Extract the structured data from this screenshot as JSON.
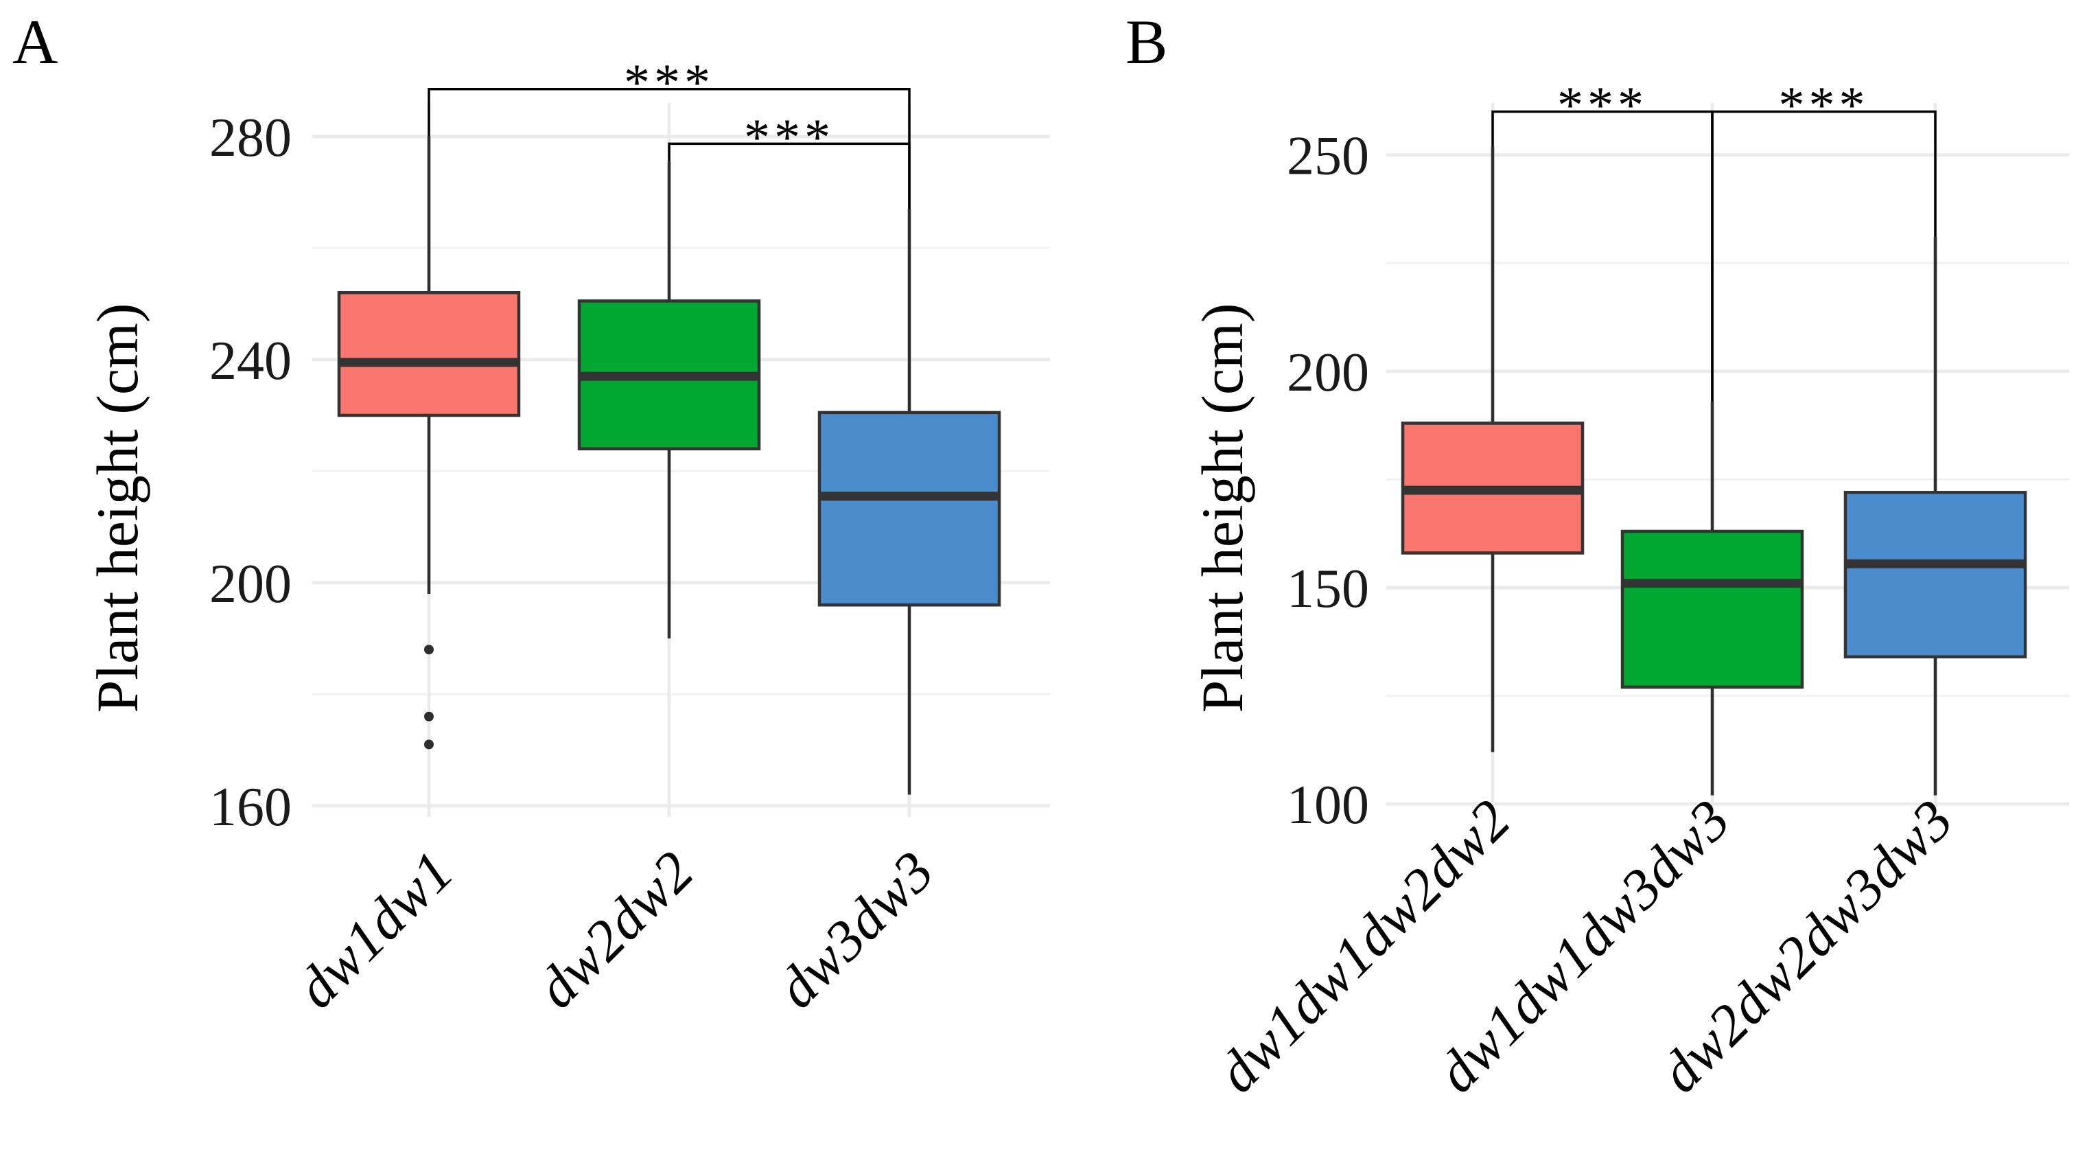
{
  "chart_data": [
    {
      "type": "box",
      "panel_label": "A",
      "ylabel": "Plant height (cm)",
      "ylim": [
        158,
        286
      ],
      "yticks": [
        160,
        200,
        240,
        280
      ],
      "grid": true,
      "categories": [
        "dw1dw1",
        "dw2dw2",
        "dw3dw3"
      ],
      "fill_colors": [
        "#F8766D",
        "#00A832",
        "#4A8CCC"
      ],
      "boxes": [
        {
          "min": 198,
          "q1": 230,
          "median": 239.5,
          "q3": 252,
          "max": 280,
          "outliers": [
            188,
            176,
            171
          ]
        },
        {
          "min": 190,
          "q1": 224,
          "median": 237,
          "q3": 250.5,
          "max": 275.5,
          "outliers": []
        },
        {
          "min": 162,
          "q1": 196,
          "median": 215.5,
          "q3": 230.5,
          "max": 267,
          "outliers": []
        }
      ],
      "significance": [
        {
          "from": 0,
          "to": 2,
          "label": "***",
          "y": 288.5
        },
        {
          "from": 1,
          "to": 2,
          "label": "***",
          "y": 278.7
        }
      ]
    },
    {
      "type": "box",
      "panel_label": "B",
      "ylabel": "Plant height (cm)",
      "ylim": [
        97,
        262
      ],
      "yticks": [
        100,
        150,
        200,
        250
      ],
      "grid": true,
      "categories": [
        "dw1dw1dw2dw2",
        "dw1dw1dw3dw3",
        "dw2dw2dw3dw3"
      ],
      "fill_colors": [
        "#F8766D",
        "#00A832",
        "#4A8CCC"
      ],
      "boxes": [
        {
          "min": 112,
          "q1": 158,
          "median": 172.5,
          "q3": 188,
          "max": 252,
          "outliers": []
        },
        {
          "min": 102,
          "q1": 127,
          "median": 151,
          "q3": 163,
          "max": 193,
          "outliers": []
        },
        {
          "min": 102,
          "q1": 134,
          "median": 155.5,
          "q3": 172,
          "max": 231,
          "outliers": []
        }
      ],
      "significance": [
        {
          "from": 0,
          "to": 1,
          "label": "***",
          "y": 260
        },
        {
          "from": 1,
          "to": 2,
          "label": "***",
          "y": 260
        }
      ]
    }
  ]
}
